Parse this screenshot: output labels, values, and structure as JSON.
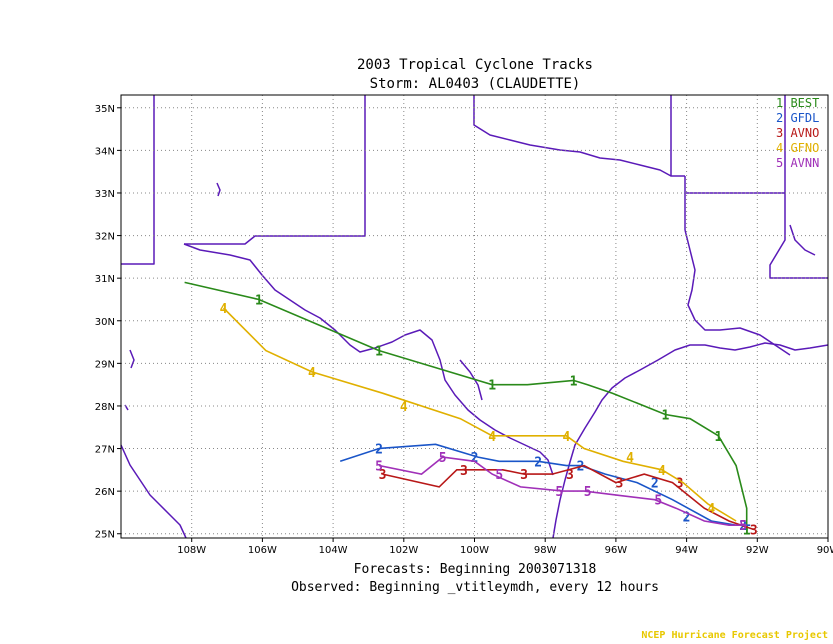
{
  "chart_data": {
    "type": "line",
    "title": "2003 Tropical Cyclone Tracks",
    "subtitle": "Storm: AL0403 (CLAUDETTE)",
    "footer_line1": "Forecasts: Beginning 2003071318",
    "footer_line2": "Observed: Beginning _vtitleymdh, every 12 hours",
    "credit": "NCEP Hurricane Forecast Project",
    "xlim": [
      -110,
      -90
    ],
    "ylim": [
      24.9,
      35.3
    ],
    "x_ticks": [
      {
        "value": -108,
        "label": "108W"
      },
      {
        "value": -106,
        "label": "106W"
      },
      {
        "value": -104,
        "label": "104W"
      },
      {
        "value": -102,
        "label": "102W"
      },
      {
        "value": -100,
        "label": "100W"
      },
      {
        "value": -98,
        "label": "98W"
      },
      {
        "value": -96,
        "label": "96W"
      },
      {
        "value": -94,
        "label": "94W"
      },
      {
        "value": -92,
        "label": "92W"
      },
      {
        "value": -90,
        "label": "90W"
      }
    ],
    "y_ticks": [
      {
        "value": 25,
        "label": "25N"
      },
      {
        "value": 26,
        "label": "26N"
      },
      {
        "value": 27,
        "label": "27N"
      },
      {
        "value": 28,
        "label": "28N"
      },
      {
        "value": 29,
        "label": "29N"
      },
      {
        "value": 30,
        "label": "30N"
      },
      {
        "value": 31,
        "label": "31N"
      },
      {
        "value": 32,
        "label": "32N"
      },
      {
        "value": 33,
        "label": "33N"
      },
      {
        "value": 34,
        "label": "34N"
      },
      {
        "value": 35,
        "label": "35N"
      }
    ],
    "grid": true,
    "legend_position": "top-right",
    "series": [
      {
        "name": "BEST",
        "marker": "1",
        "color": "#2a8a1a",
        "points": [
          [
            -108.2,
            30.9
          ],
          [
            -106.1,
            30.5
          ],
          [
            -102.7,
            29.3
          ],
          [
            -99.5,
            28.5
          ],
          [
            -98.5,
            28.5
          ],
          [
            -97.2,
            28.6
          ],
          [
            -96.8,
            28.5
          ],
          [
            -96.1,
            28.3
          ],
          [
            -94.6,
            27.8
          ],
          [
            -93.9,
            27.7
          ],
          [
            -93.1,
            27.3
          ],
          [
            -92.6,
            26.6
          ],
          [
            -92.3,
            25.6
          ],
          [
            -92.3,
            25.1
          ]
        ],
        "markers": [
          [
            -106.1,
            30.5
          ],
          [
            -102.7,
            29.3
          ],
          [
            -99.5,
            28.5
          ],
          [
            -97.2,
            28.6
          ],
          [
            -94.6,
            27.8
          ],
          [
            -93.1,
            27.3
          ],
          [
            -92.3,
            25.1
          ]
        ]
      },
      {
        "name": "GFDL",
        "marker": "2",
        "color": "#1a55c8",
        "points": [
          [
            -103.8,
            26.7
          ],
          [
            -102.7,
            27.0
          ],
          [
            -101.1,
            27.1
          ],
          [
            -99.9,
            26.8
          ],
          [
            -99.3,
            26.7
          ],
          [
            -98.2,
            26.7
          ],
          [
            -97.4,
            26.6
          ],
          [
            -97.0,
            26.6
          ],
          [
            -96.3,
            26.4
          ],
          [
            -95.4,
            26.2
          ],
          [
            -94.4,
            25.8
          ],
          [
            -93.3,
            25.3
          ],
          [
            -92.6,
            25.2
          ],
          [
            -92.2,
            25.2
          ]
        ],
        "markers": [
          [
            -102.7,
            27.0
          ],
          [
            -100.0,
            26.8
          ],
          [
            -98.2,
            26.7
          ],
          [
            -97.0,
            26.6
          ],
          [
            -94.9,
            26.2
          ],
          [
            -94.0,
            25.4
          ],
          [
            -92.4,
            25.2
          ]
        ]
      },
      {
        "name": "AVNO",
        "marker": "3",
        "color": "#b81818",
        "points": [
          [
            -102.6,
            26.4
          ],
          [
            -101.0,
            26.1
          ],
          [
            -100.5,
            26.5
          ],
          [
            -100.1,
            26.5
          ],
          [
            -99.2,
            26.5
          ],
          [
            -98.6,
            26.4
          ],
          [
            -97.8,
            26.4
          ],
          [
            -96.9,
            26.6
          ],
          [
            -96.0,
            26.2
          ],
          [
            -95.2,
            26.4
          ],
          [
            -94.4,
            26.2
          ],
          [
            -93.5,
            25.6
          ],
          [
            -92.8,
            25.3
          ],
          [
            -92.1,
            25.1
          ]
        ],
        "markers": [
          [
            -102.6,
            26.4
          ],
          [
            -100.3,
            26.5
          ],
          [
            -98.6,
            26.4
          ],
          [
            -97.3,
            26.4
          ],
          [
            -95.9,
            26.2
          ],
          [
            -94.2,
            26.2
          ],
          [
            -92.1,
            25.1
          ]
        ]
      },
      {
        "name": "GFNO",
        "marker": "4",
        "color": "#e0b000",
        "points": [
          [
            -107.1,
            30.3
          ],
          [
            -105.9,
            29.3
          ],
          [
            -104.6,
            28.8
          ],
          [
            -102.6,
            28.3
          ],
          [
            -100.4,
            27.7
          ],
          [
            -99.5,
            27.3
          ],
          [
            -98.2,
            27.3
          ],
          [
            -97.4,
            27.3
          ],
          [
            -96.9,
            27.0
          ],
          [
            -95.8,
            26.7
          ],
          [
            -94.7,
            26.5
          ],
          [
            -94.1,
            26.2
          ],
          [
            -93.4,
            25.7
          ],
          [
            -92.6,
            25.3
          ]
        ],
        "markers": [
          [
            -107.1,
            30.3
          ],
          [
            -104.6,
            28.8
          ],
          [
            -102.0,
            28.0
          ],
          [
            -99.5,
            27.3
          ],
          [
            -97.4,
            27.3
          ],
          [
            -95.6,
            26.8
          ],
          [
            -94.7,
            26.5
          ],
          [
            -93.3,
            25.6
          ]
        ]
      },
      {
        "name": "AVNN",
        "marker": "5",
        "color": "#a030b8",
        "points": [
          [
            -102.7,
            26.6
          ],
          [
            -101.5,
            26.4
          ],
          [
            -100.9,
            26.8
          ],
          [
            -100.0,
            26.7
          ],
          [
            -99.5,
            26.4
          ],
          [
            -98.7,
            26.1
          ],
          [
            -97.5,
            26.0
          ],
          [
            -96.9,
            26.0
          ],
          [
            -95.9,
            25.9
          ],
          [
            -94.9,
            25.8
          ],
          [
            -94.3,
            25.6
          ],
          [
            -93.5,
            25.3
          ],
          [
            -92.8,
            25.2
          ],
          [
            -92.3,
            25.2
          ]
        ],
        "markers": [
          [
            -102.7,
            26.6
          ],
          [
            -100.9,
            26.8
          ],
          [
            -99.3,
            26.4
          ],
          [
            -97.6,
            26.0
          ],
          [
            -96.8,
            26.0
          ],
          [
            -94.8,
            25.8
          ],
          [
            -92.4,
            25.2
          ]
        ]
      }
    ]
  },
  "map_outline_color": "#5a1ab8"
}
